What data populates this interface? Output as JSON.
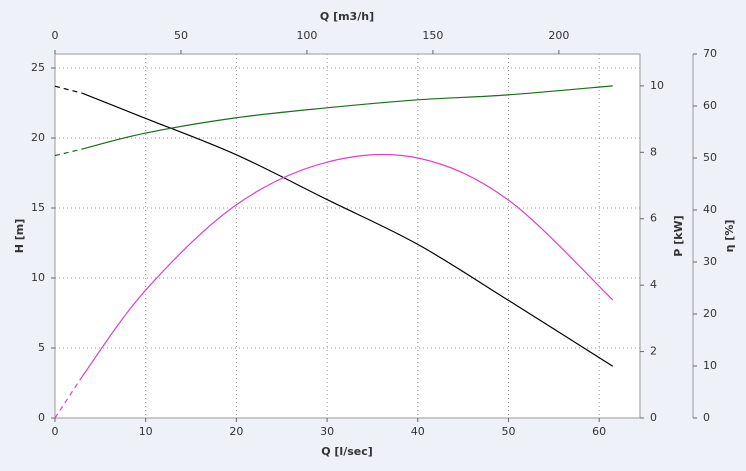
{
  "chart_data": {
    "type": "line",
    "x_label": "Q [l/sec]",
    "xlim": [
      0,
      64.5
    ],
    "xticks": [
      0,
      10,
      20,
      30,
      40,
      50,
      60
    ],
    "x2_label": "Q [m3/h]",
    "x2lim": [
      0,
      232.2
    ],
    "x2ticks": [
      0,
      50,
      100,
      150,
      200
    ],
    "y_label": "H [m]",
    "ylim": [
      0,
      26
    ],
    "yticks": [
      0,
      5,
      10,
      15,
      20,
      25
    ],
    "y2_label": "P [kW]",
    "y2lim": [
      0,
      10.96
    ],
    "y2ticks": [
      0,
      2,
      4,
      6,
      8,
      10
    ],
    "y3_label": "η [%]",
    "y3lim": [
      0,
      70
    ],
    "y3ticks": [
      0,
      10,
      20,
      30,
      40,
      50,
      60,
      70
    ],
    "grid": true,
    "dashed_first_segment": true,
    "x": [
      0,
      3,
      10,
      20,
      30,
      40,
      50,
      61.5
    ],
    "series": [
      {
        "color": "#000000",
        "axis": "y",
        "values": [
          23.7,
          23.2,
          21.4,
          18.8,
          15.6,
          12.4,
          8.4,
          3.7
        ]
      },
      {
        "color": "#1b6e1b",
        "axis": "y2",
        "values": [
          7.9,
          8.1,
          8.58,
          9.04,
          9.34,
          9.58,
          9.73,
          10.0
        ]
      },
      {
        "color": "#e040c8",
        "axis": "y3",
        "values": [
          0,
          8,
          24.6,
          41,
          49.2,
          50,
          41.9,
          22.7
        ]
      }
    ]
  }
}
